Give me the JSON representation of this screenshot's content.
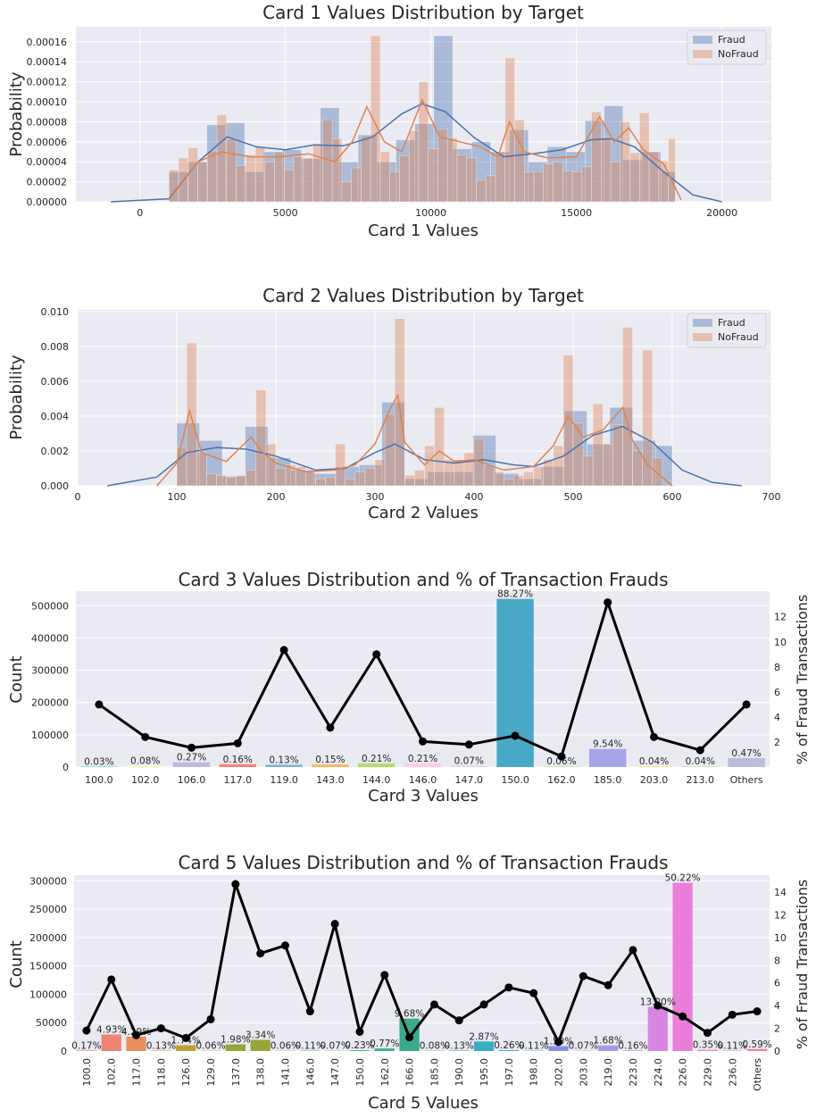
{
  "chart_data": [
    {
      "type": "histogram",
      "title": "Card 1 Values Distribution by Target",
      "xlabel": "Card 1 Values",
      "ylabel": "Probability",
      "xlim": [
        -2200,
        21700
      ],
      "ylim": [
        0,
        0.000175
      ],
      "xticks": [
        0,
        5000,
        10000,
        15000,
        20000
      ],
      "yticks": [
        0,
        2e-05,
        4e-05,
        6e-05,
        8e-05,
        0.0001,
        0.00012,
        0.00014,
        0.00016
      ],
      "ytick_labels": [
        "0.00000",
        "0.00002",
        "0.00004",
        "0.00006",
        "0.00008",
        "0.00010",
        "0.00012",
        "0.00014",
        "0.00016"
      ],
      "grid": true,
      "legend_position": "top-right",
      "series": [
        {
          "name": "Fraud",
          "color": "#4c72b0",
          "bin_edges": [
            1000,
            1650,
            2300,
            2950,
            3600,
            4250,
            4900,
            5550,
            6200,
            6850,
            7500,
            8150,
            8800,
            9450,
            10100,
            10750,
            11400,
            12050,
            12700,
            13350,
            14000,
            14650,
            15300,
            15950,
            16600,
            17250,
            17900,
            18400
          ],
          "values": [
            3e-05,
            4e-05,
            7.7e-05,
            7.9e-05,
            3e-05,
            5e-05,
            5.2e-05,
            4.3e-05,
            9.4e-05,
            4e-05,
            6.7e-05,
            4e-05,
            6.2e-05,
            7.8e-05,
            0.000166,
            5.3e-05,
            6e-05,
            5e-05,
            7.2e-05,
            4e-05,
            5.5e-05,
            5e-05,
            8.1e-05,
            9.6e-05,
            4.2e-05,
            5e-05,
            3e-05
          ],
          "kde_x": [
            -1000,
            1000,
            2000,
            3000,
            4000,
            5000,
            6000,
            7000,
            8000,
            9000,
            9700,
            10500,
            11500,
            12500,
            13500,
            14500,
            15500,
            16200,
            17000,
            18000,
            19000,
            20000
          ],
          "kde_y": [
            0,
            3e-06,
            4e-05,
            6.5e-05,
            5.5e-05,
            5.2e-05,
            5.7e-05,
            5.6e-05,
            6.5e-05,
            8.8e-05,
            9.8e-05,
            9e-05,
            6.4e-05,
            4.5e-05,
            4.8e-05,
            5.2e-05,
            6.2e-05,
            6.3e-05,
            5.5e-05,
            3e-05,
            7e-06,
            0
          ]
        },
        {
          "name": "NoFraud",
          "color": "#dd8452",
          "bin_edges": [
            1000,
            1330,
            1660,
            1990,
            2320,
            2650,
            2980,
            3310,
            3640,
            3970,
            4300,
            4630,
            4960,
            5290,
            5620,
            5950,
            6280,
            6610,
            6940,
            7270,
            7600,
            7930,
            8260,
            8590,
            8920,
            9250,
            9580,
            9910,
            10240,
            10570,
            10900,
            11230,
            11560,
            11890,
            12220,
            12550,
            12880,
            13210,
            13540,
            13870,
            14200,
            14530,
            14860,
            15190,
            15520,
            15850,
            16180,
            16510,
            16840,
            17170,
            17500,
            17830,
            18160,
            18400
          ],
          "values": [
            3.2e-05,
            4.4e-05,
            5.4e-05,
            4e-05,
            5.1e-05,
            8.7e-05,
            6.3e-05,
            3.6e-05,
            4.7e-05,
            5.5e-05,
            4e-05,
            5e-05,
            3.2e-05,
            4.5e-05,
            4.4e-05,
            5.8e-05,
            8.2e-05,
            6.3e-05,
            2e-05,
            3.4e-05,
            6.6e-05,
            0.000166,
            5e-05,
            3e-05,
            4.6e-05,
            7.1e-05,
            0.00012,
            5.3e-05,
            7.3e-05,
            6.4e-05,
            4.7e-05,
            4.4e-05,
            2.2e-05,
            2.6e-05,
            5e-05,
            0.000144,
            8.2e-05,
            3e-05,
            3e-05,
            3.8e-05,
            4e-05,
            3.1e-05,
            3e-05,
            3.5e-05,
            9e-05,
            6.5e-05,
            4e-05,
            8e-05,
            4.9e-05,
            8.9e-05,
            5e-05,
            4.1e-05,
            6.3e-05,
            3.2e-05
          ],
          "kde_x": [
            1000,
            2000,
            2800,
            3800,
            4800,
            5800,
            6700,
            7300,
            7800,
            8400,
            9000,
            9700,
            10300,
            11000,
            11700,
            12300,
            12700,
            13200,
            14000,
            15000,
            15800,
            16300,
            16800,
            17300,
            18000,
            18600
          ],
          "kde_y": [
            2e-06,
            4e-05,
            5e-05,
            4.5e-05,
            4.5e-05,
            4.8e-05,
            4e-05,
            6e-05,
            9.5e-05,
            6e-05,
            5e-05,
            0.000102,
            6.5e-05,
            6e-05,
            5.5e-05,
            4.5e-05,
            8e-05,
            5e-05,
            4.4e-05,
            4.5e-05,
            8.5e-05,
            6e-05,
            7.4e-05,
            5.2e-05,
            3.8e-05,
            2e-06
          ]
        }
      ]
    },
    {
      "type": "histogram",
      "title": "Card 2 Values Distribution by Target",
      "xlabel": "Card 2 Values",
      "ylabel": "Probability",
      "xlim": [
        0,
        700
      ],
      "ylim": [
        0,
        0.0101
      ],
      "xticks": [
        0,
        100,
        200,
        300,
        400,
        500,
        600,
        700
      ],
      "yticks": [
        0,
        0.002,
        0.004,
        0.006,
        0.008,
        0.01
      ],
      "ytick_labels": [
        "0.000",
        "0.002",
        "0.004",
        "0.006",
        "0.008",
        "0.010"
      ],
      "grid": true,
      "legend_position": "top-right",
      "series": [
        {
          "name": "Fraud",
          "color": "#4c72b0",
          "bin_edges": [
            100,
            123,
            146,
            169,
            192,
            215,
            238,
            261,
            284,
            307,
            330,
            353,
            376,
            399,
            422,
            445,
            468,
            491,
            514,
            537,
            560,
            583,
            600
          ],
          "values": [
            0.0036,
            0.0026,
            0.00055,
            0.0034,
            0.0016,
            0.0009,
            0.0007,
            0.0011,
            0.0012,
            0.0048,
            0.0004,
            0.0008,
            0.0008,
            0.0029,
            0.0007,
            0.0004,
            0.0011,
            0.0043,
            0.0024,
            0.0045,
            0.0026,
            0.0023
          ],
          "kde_x": [
            30,
            80,
            110,
            140,
            170,
            200,
            240,
            270,
            300,
            320,
            350,
            380,
            410,
            440,
            460,
            490,
            520,
            550,
            580,
            610,
            640,
            670
          ],
          "kde_y": [
            0,
            0.0005,
            0.0019,
            0.0022,
            0.0021,
            0.0017,
            0.0009,
            0.001,
            0.0019,
            0.0024,
            0.0015,
            0.0013,
            0.0015,
            0.0012,
            0.0011,
            0.0017,
            0.0029,
            0.0034,
            0.0025,
            0.0009,
            0.0002,
            0
          ]
        },
        {
          "name": "NoFraud",
          "color": "#dd8452",
          "bin_edges": [
            100,
            110,
            120,
            130,
            140,
            150,
            160,
            170,
            180,
            190,
            200,
            210,
            220,
            230,
            240,
            250,
            260,
            270,
            280,
            290,
            300,
            310,
            320,
            330,
            340,
            350,
            360,
            370,
            380,
            390,
            400,
            410,
            420,
            430,
            440,
            450,
            460,
            470,
            480,
            490,
            500,
            510,
            520,
            530,
            540,
            550,
            560,
            570,
            580,
            590
          ],
          "values": [
            0.0022,
            0.0082,
            0.0019,
            0.0007,
            0.0006,
            0.0005,
            0.0006,
            0.0009,
            0.0055,
            0.0024,
            0.001,
            0.0012,
            0.0011,
            0.0008,
            0.0004,
            0.0005,
            0.0024,
            0.0004,
            0.0008,
            0.001,
            0.0015,
            0.0041,
            0.0096,
            0.0006,
            0.0009,
            0.0023,
            0.0045,
            0.0015,
            0.0015,
            0.0019,
            0.0027,
            0.0012,
            0.0008,
            0.0004,
            0.0006,
            0.0008,
            0.0011,
            0.0015,
            0.0023,
            0.0075,
            0.0036,
            0.0017,
            0.0047,
            0.0024,
            0.0035,
            0.0091,
            0.002,
            0.0078,
            0.0016,
            0.004
          ],
          "kde_x": [
            80,
            100,
            113,
            125,
            150,
            175,
            185,
            200,
            230,
            260,
            280,
            300,
            315,
            323,
            330,
            350,
            365,
            380,
            400,
            430,
            460,
            480,
            495,
            510,
            530,
            550,
            560,
            575,
            600
          ],
          "kde_y": [
            0,
            0.0013,
            0.0043,
            0.0019,
            0.0014,
            0.0028,
            0.002,
            0.0013,
            0.0008,
            0.0009,
            0.0012,
            0.0024,
            0.0044,
            0.0052,
            0.0025,
            0.0012,
            0.002,
            0.0014,
            0.0015,
            0.0009,
            0.0011,
            0.0023,
            0.004,
            0.0028,
            0.0032,
            0.0045,
            0.0026,
            0.0012,
            0
          ]
        }
      ]
    },
    {
      "type": "bar",
      "title": "Card 3 Values Distribution and % of Transaction Frauds",
      "xlabel": "Card 3 Values",
      "ylabel": "Count",
      "ylabel_right": "% of Fraud Transactions",
      "ylim": [
        0,
        545000
      ],
      "yticks": [
        0,
        100000,
        200000,
        300000,
        400000,
        500000
      ],
      "ylim_right": [
        0,
        14.05
      ],
      "yticks_right": [
        2,
        4,
        6,
        8,
        10,
        12
      ],
      "grid": true,
      "categories": [
        "100.0",
        "102.0",
        "106.0",
        "117.0",
        "119.0",
        "143.0",
        "144.0",
        "146.0",
        "147.0",
        "150.0",
        "162.0",
        "185.0",
        "203.0",
        "213.0",
        "Others"
      ],
      "counts": [
        1750,
        4300,
        15000,
        8800,
        7200,
        8100,
        11600,
        11700,
        3800,
        521000,
        3300,
        56300,
        2100,
        2300,
        27900
      ],
      "percent_labels": [
        "0.03%",
        "0.08%",
        "0.27%",
        "0.16%",
        "0.13%",
        "0.15%",
        "0.21%",
        "0.21%",
        "0.07%",
        "88.27%",
        "0.06%",
        "9.54%",
        "0.04%",
        "0.04%",
        "0.47%"
      ],
      "fraud_rate": [
        5.0,
        2.4,
        1.55,
        1.9,
        9.35,
        3.15,
        9.0,
        2.05,
        1.8,
        2.5,
        0.85,
        13.15,
        2.4,
        1.35,
        5.0
      ],
      "bar_colors": [
        "#8dd3c7",
        "#ffffb3",
        "#bebada",
        "#fb8072",
        "#80b1d3",
        "#fdb462",
        "#b3de69",
        "#fccde5",
        "#d9d9d9",
        "#4ba7c6",
        "#ccebc5",
        "#a8a4e8",
        "#ffed6f",
        "#c7e9c0",
        "#bcbddc"
      ]
    },
    {
      "type": "bar",
      "title": "Card 5 Values Distribution and % of Transaction Frauds",
      "xlabel": "Card 5 Values",
      "ylabel": "Count",
      "ylabel_right": "% of Fraud Transactions",
      "ylim": [
        0,
        310000
      ],
      "yticks": [
        0,
        50000,
        100000,
        150000,
        200000,
        250000,
        300000
      ],
      "ylim_right": [
        0,
        15.5
      ],
      "yticks_right": [
        0,
        2,
        4,
        6,
        8,
        10,
        12,
        14
      ],
      "grid": true,
      "categories": [
        "100.0",
        "102.0",
        "117.0",
        "118.0",
        "126.0",
        "129.0",
        "137.0",
        "138.0",
        "141.0",
        "146.0",
        "147.0",
        "150.0",
        "162.0",
        "166.0",
        "185.0",
        "190.0",
        "195.0",
        "197.0",
        "198.0",
        "202.0",
        "203.0",
        "219.0",
        "223.0",
        "224.0",
        "226.0",
        "229.0",
        "236.0",
        "Others"
      ],
      "counts": [
        1000,
        29100,
        25300,
        800,
        10300,
        400,
        11700,
        19700,
        400,
        600,
        400,
        1400,
        4500,
        57200,
        500,
        800,
        16900,
        1500,
        600,
        8800,
        400,
        9900,
        900,
        77900,
        296500,
        2100,
        700,
        3500
      ],
      "percent_labels": [
        "0.17%",
        "4.93%",
        "4.29%",
        "0.13%",
        "1.74%",
        "0.06%",
        "1.98%",
        "3.34%",
        "0.06%",
        "0.11%",
        "0.07%",
        "0.23%",
        "0.77%",
        "9.68%",
        "0.08%",
        "0.13%",
        "2.87%",
        "0.26%",
        "0.11%",
        "1.50%",
        "0.07%",
        "1.68%",
        "0.16%",
        "13.20%",
        "50.22%",
        "0.35%",
        "0.11%",
        "0.59%"
      ],
      "fraud_rate": [
        1.8,
        6.3,
        1.4,
        2.0,
        1.15,
        2.8,
        14.7,
        8.6,
        9.3,
        3.5,
        11.2,
        1.7,
        6.7,
        1.2,
        4.1,
        2.7,
        4.1,
        5.6,
        5.1,
        0.8,
        6.6,
        5.8,
        8.9,
        4.0,
        3.05,
        1.6,
        3.2,
        3.5
      ],
      "bar_colors": [
        "#f0837d",
        "#ee8574",
        "#e98f5e",
        "#d99d45",
        "#bca03a",
        "#a7a236",
        "#92a537",
        "#98a43a",
        "#78ac3a",
        "#4eb24a",
        "#3cb466",
        "#3ab27f",
        "#38b095",
        "#3aa98d",
        "#3aada3",
        "#3ab0b5",
        "#36aec4",
        "#3ca9d3",
        "#5b9ddf",
        "#8891e6",
        "#a88be9",
        "#a29aeb",
        "#c07de8",
        "#d787e1",
        "#e97fd8",
        "#ec83c8",
        "#f07fb0",
        "#f2809d"
      ]
    }
  ]
}
